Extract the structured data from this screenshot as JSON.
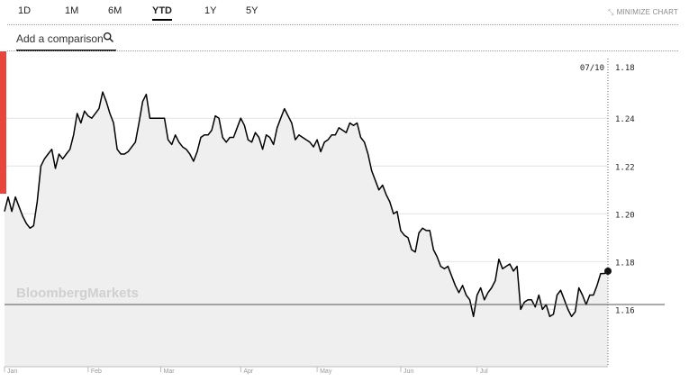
{
  "tabs": [
    {
      "label": "1D",
      "active": false
    },
    {
      "label": "1M",
      "active": false
    },
    {
      "label": "6M",
      "active": false
    },
    {
      "label": "YTD",
      "active": true
    },
    {
      "label": "1Y",
      "active": false
    },
    {
      "label": "5Y",
      "active": false
    }
  ],
  "minimize_label": "MINIMIZE CHART",
  "minimize_icon": "collapse-arrows-icon",
  "comparison": {
    "placeholder": "Add a comparison",
    "icon": "search-icon"
  },
  "watermark": "BloombergMarkets",
  "colors": {
    "line": "#000000",
    "area": "#efefef",
    "accent_bar": "#e8453c",
    "crosshair": "#666666"
  },
  "chart_data": {
    "type": "area",
    "title": "",
    "xlabel": "",
    "ylabel": "",
    "x_ticks": [
      "Jan",
      "Feb",
      "Mar",
      "Apr",
      "May",
      "Jun",
      "Jul"
    ],
    "y_ticks": [
      "1.16",
      "1.18",
      "1.20",
      "1.22",
      "1.24"
    ],
    "ylim": [
      1.136,
      1.268
    ],
    "grid": true,
    "cursor_date": "07/10",
    "cursor_value": "1.18",
    "series": [
      {
        "values": [
          {
            "d": "Jan 1",
            "v": 1.201
          },
          {
            "d": "Jan 2",
            "v": 1.207
          },
          {
            "d": "Jan 3",
            "v": 1.201
          },
          {
            "d": "Jan 4",
            "v": 1.207
          },
          {
            "d": "Jan 5",
            "v": 1.203
          },
          {
            "d": "Jan 8",
            "v": 1.199
          },
          {
            "d": "Jan 9",
            "v": 1.196
          },
          {
            "d": "Jan 10",
            "v": 1.194
          },
          {
            "d": "Jan 11",
            "v": 1.195
          },
          {
            "d": "Jan 12",
            "v": 1.205
          },
          {
            "d": "Jan 15",
            "v": 1.22
          },
          {
            "d": "Jan 16",
            "v": 1.223
          },
          {
            "d": "Jan 17",
            "v": 1.225
          },
          {
            "d": "Jan 18",
            "v": 1.227
          },
          {
            "d": "Jan 19",
            "v": 1.219
          },
          {
            "d": "Jan 22",
            "v": 1.225
          },
          {
            "d": "Jan 23",
            "v": 1.223
          },
          {
            "d": "Jan 24",
            "v": 1.225
          },
          {
            "d": "Jan 25",
            "v": 1.227
          },
          {
            "d": "Jan 26",
            "v": 1.233
          },
          {
            "d": "Jan 29",
            "v": 1.242
          },
          {
            "d": "Jan 30",
            "v": 1.238
          },
          {
            "d": "Jan 31",
            "v": 1.243
          },
          {
            "d": "Feb 1",
            "v": 1.241
          },
          {
            "d": "Feb 2",
            "v": 1.24
          },
          {
            "d": "Feb 5",
            "v": 1.242
          },
          {
            "d": "Feb 6",
            "v": 1.244
          },
          {
            "d": "Feb 7",
            "v": 1.251
          },
          {
            "d": "Feb 8",
            "v": 1.247
          },
          {
            "d": "Feb 9",
            "v": 1.242
          },
          {
            "d": "Feb 12",
            "v": 1.238
          },
          {
            "d": "Feb 13",
            "v": 1.227
          },
          {
            "d": "Feb 14",
            "v": 1.225
          },
          {
            "d": "Feb 15",
            "v": 1.225
          },
          {
            "d": "Feb 16",
            "v": 1.226
          },
          {
            "d": "Feb 19",
            "v": 1.228
          },
          {
            "d": "Feb 20",
            "v": 1.23
          },
          {
            "d": "Feb 21",
            "v": 1.238
          },
          {
            "d": "Feb 22",
            "v": 1.247
          },
          {
            "d": "Feb 23",
            "v": 1.25
          },
          {
            "d": "Feb 26",
            "v": 1.24
          },
          {
            "d": "Feb 27",
            "v": 1.24
          },
          {
            "d": "Feb 28",
            "v": 1.24
          },
          {
            "d": "Mar 1",
            "v": 1.24
          },
          {
            "d": "Mar 2",
            "v": 1.24
          },
          {
            "d": "Mar 5",
            "v": 1.231
          },
          {
            "d": "Mar 6",
            "v": 1.229
          },
          {
            "d": "Mar 7",
            "v": 1.233
          },
          {
            "d": "Mar 8",
            "v": 1.23
          },
          {
            "d": "Mar 9",
            "v": 1.228
          },
          {
            "d": "Mar 12",
            "v": 1.227
          },
          {
            "d": "Mar 13",
            "v": 1.225
          },
          {
            "d": "Mar 14",
            "v": 1.222
          },
          {
            "d": "Mar 15",
            "v": 1.226
          },
          {
            "d": "Mar 16",
            "v": 1.232
          },
          {
            "d": "Mar 19",
            "v": 1.233
          },
          {
            "d": "Mar 20",
            "v": 1.233
          },
          {
            "d": "Mar 21",
            "v": 1.235
          },
          {
            "d": "Mar 22",
            "v": 1.241
          },
          {
            "d": "Mar 23",
            "v": 1.24
          },
          {
            "d": "Mar 26",
            "v": 1.232
          },
          {
            "d": "Mar 27",
            "v": 1.23
          },
          {
            "d": "Mar 28",
            "v": 1.232
          },
          {
            "d": "Mar 29",
            "v": 1.232
          },
          {
            "d": "Mar 30",
            "v": 1.236
          },
          {
            "d": "Apr 2",
            "v": 1.24
          },
          {
            "d": "Apr 3",
            "v": 1.237
          },
          {
            "d": "Apr 4",
            "v": 1.231
          },
          {
            "d": "Apr 5",
            "v": 1.23
          },
          {
            "d": "Apr 6",
            "v": 1.234
          },
          {
            "d": "Apr 9",
            "v": 1.232
          },
          {
            "d": "Apr 10",
            "v": 1.227
          },
          {
            "d": "Apr 11",
            "v": 1.233
          },
          {
            "d": "Apr 12",
            "v": 1.232
          },
          {
            "d": "Apr 13",
            "v": 1.229
          },
          {
            "d": "Apr 16",
            "v": 1.236
          },
          {
            "d": "Apr 17",
            "v": 1.24
          },
          {
            "d": "Apr 18",
            "v": 1.244
          },
          {
            "d": "Apr 19",
            "v": 1.241
          },
          {
            "d": "Apr 20",
            "v": 1.238
          },
          {
            "d": "Apr 23",
            "v": 1.231
          },
          {
            "d": "Apr 24",
            "v": 1.233
          },
          {
            "d": "Apr 25",
            "v": 1.232
          },
          {
            "d": "Apr 26",
            "v": 1.231
          },
          {
            "d": "Apr 27",
            "v": 1.23
          },
          {
            "d": "Apr 30",
            "v": 1.228
          },
          {
            "d": "May 1",
            "v": 1.231
          },
          {
            "d": "May 2",
            "v": 1.226
          },
          {
            "d": "May 3",
            "v": 1.23
          },
          {
            "d": "May 4",
            "v": 1.231
          },
          {
            "d": "May 7",
            "v": 1.233
          },
          {
            "d": "May 8",
            "v": 1.233
          },
          {
            "d": "May 9",
            "v": 1.236
          },
          {
            "d": "May 10",
            "v": 1.235
          },
          {
            "d": "May 11",
            "v": 1.234
          },
          {
            "d": "May 14",
            "v": 1.238
          },
          {
            "d": "May 15",
            "v": 1.237
          },
          {
            "d": "May 16",
            "v": 1.238
          },
          {
            "d": "May 17",
            "v": 1.232
          },
          {
            "d": "May 18",
            "v": 1.23
          },
          {
            "d": "May 21",
            "v": 1.225
          },
          {
            "d": "May 22",
            "v": 1.218
          },
          {
            "d": "May 23",
            "v": 1.214
          },
          {
            "d": "May 24",
            "v": 1.21
          },
          {
            "d": "May 25",
            "v": 1.212
          },
          {
            "d": "May 28",
            "v": 1.208
          },
          {
            "d": "May 29",
            "v": 1.205
          },
          {
            "d": "May 30",
            "v": 1.2
          },
          {
            "d": "May 31",
            "v": 1.201
          },
          {
            "d": "Jun 1",
            "v": 1.193
          },
          {
            "d": "Jun 4",
            "v": 1.191
          },
          {
            "d": "Jun 5",
            "v": 1.19
          },
          {
            "d": "Jun 6",
            "v": 1.185
          },
          {
            "d": "Jun 7",
            "v": 1.184
          },
          {
            "d": "Jun 8",
            "v": 1.192
          },
          {
            "d": "Jun 11",
            "v": 1.194
          },
          {
            "d": "Jun 12",
            "v": 1.193
          },
          {
            "d": "Jun 13",
            "v": 1.193
          },
          {
            "d": "Jun 14",
            "v": 1.185
          },
          {
            "d": "Jun 15",
            "v": 1.182
          },
          {
            "d": "Jun 18",
            "v": 1.178
          },
          {
            "d": "Jun 19",
            "v": 1.177
          },
          {
            "d": "Jun 20",
            "v": 1.178
          },
          {
            "d": "Jun 21",
            "v": 1.174
          },
          {
            "d": "Jun 22",
            "v": 1.17
          },
          {
            "d": "Jun 25",
            "v": 1.167
          },
          {
            "d": "Jun 26",
            "v": 1.17
          },
          {
            "d": "Jun 27",
            "v": 1.166
          },
          {
            "d": "Jun 28",
            "v": 1.164
          },
          {
            "d": "Jun 29",
            "v": 1.157
          },
          {
            "d": "Jul 2",
            "v": 1.166
          },
          {
            "d": "Jul 3",
            "v": 1.169
          },
          {
            "d": "Jul 4",
            "v": 1.164
          },
          {
            "d": "Jul 5",
            "v": 1.167
          },
          {
            "d": "Jul 6",
            "v": 1.169
          },
          {
            "d": "Jul 9",
            "v": 1.172
          },
          {
            "d": "Jul 10",
            "v": 1.181
          },
          {
            "d": "Jul 11",
            "v": 1.177
          },
          {
            "d": "Jul 12",
            "v": 1.178
          },
          {
            "d": "Jul 13",
            "v": 1.179
          },
          {
            "d": "Jul 16",
            "v": 1.176
          },
          {
            "d": "Jul 17",
            "v": 1.178
          },
          {
            "d": "Jul 18",
            "v": 1.16
          },
          {
            "d": "Jul 19",
            "v": 1.163
          },
          {
            "d": "Jul 20",
            "v": 1.164
          },
          {
            "d": "Jul 23",
            "v": 1.164
          },
          {
            "d": "Jul 24",
            "v": 1.161
          },
          {
            "d": "Jul 25",
            "v": 1.166
          },
          {
            "d": "Jul 26",
            "v": 1.16
          },
          {
            "d": "Jul 27",
            "v": 1.162
          },
          {
            "d": "Jul 30",
            "v": 1.157
          },
          {
            "d": "Jul 31",
            "v": 1.158
          },
          {
            "d": "Aug 1",
            "v": 1.166
          },
          {
            "d": "Aug 2",
            "v": 1.168
          },
          {
            "d": "Aug 3",
            "v": 1.164
          },
          {
            "d": "Aug 6",
            "v": 1.16
          },
          {
            "d": "Aug 7",
            "v": 1.157
          },
          {
            "d": "Aug 8",
            "v": 1.159
          },
          {
            "d": "Aug 9",
            "v": 1.169
          },
          {
            "d": "Aug 10",
            "v": 1.166
          },
          {
            "d": "Aug 13",
            "v": 1.162
          },
          {
            "d": "Aug 14",
            "v": 1.166
          },
          {
            "d": "Aug 15",
            "v": 1.166
          },
          {
            "d": "Aug 16",
            "v": 1.17
          },
          {
            "d": "Aug 17",
            "v": 1.175
          },
          {
            "d": "Aug 20",
            "v": 1.175
          },
          {
            "d": "Aug 21",
            "v": 1.176
          }
        ]
      }
    ]
  }
}
